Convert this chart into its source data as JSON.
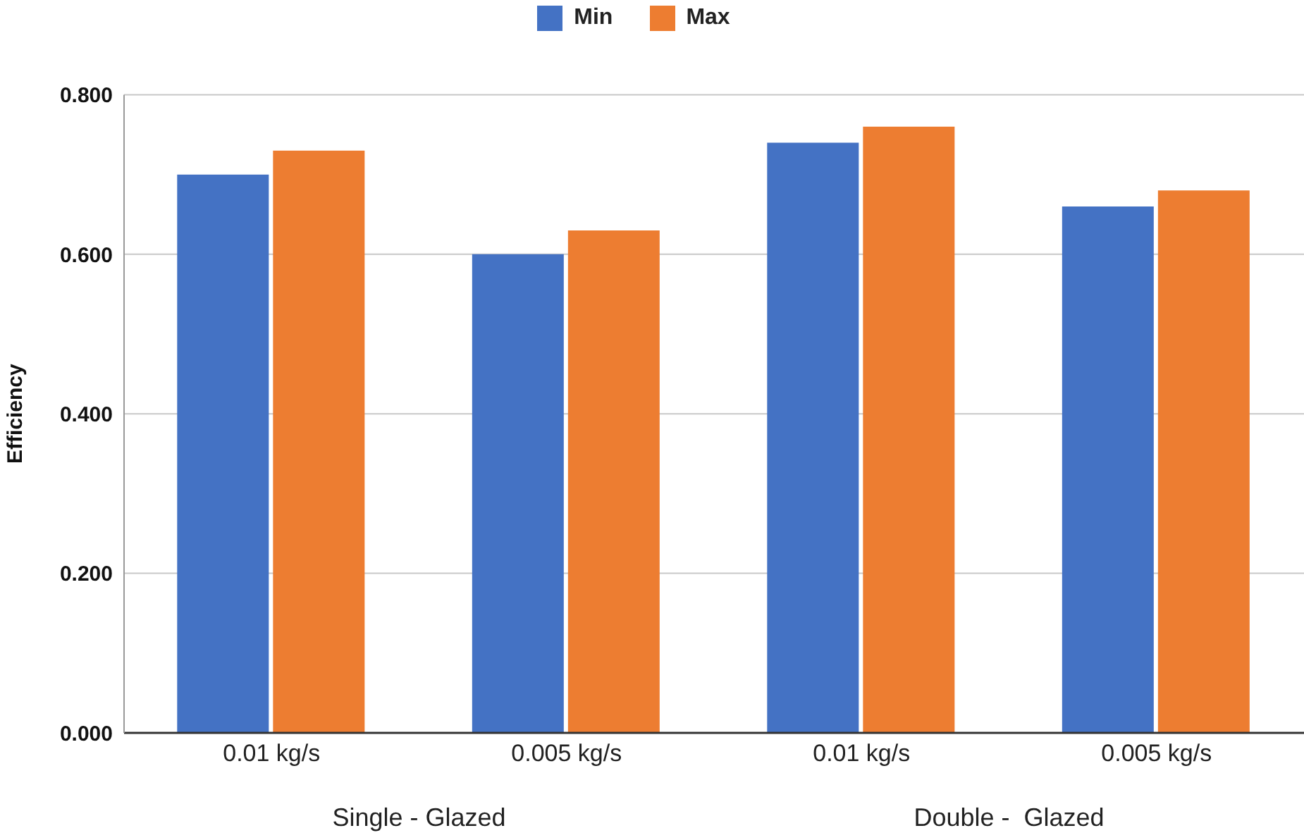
{
  "chart_data": {
    "type": "bar",
    "ylabel": "Efficiency",
    "categories": [
      "0.01 kg/s",
      "0.005 kg/s",
      "0.01 kg/s",
      "0.005 kg/s"
    ],
    "series": [
      {
        "name": "Min",
        "color": "#4472c4",
        "values": [
          0.7,
          0.6,
          0.74,
          0.66
        ]
      },
      {
        "name": "Max",
        "color": "#ed7d31",
        "values": [
          0.73,
          0.63,
          0.76,
          0.68
        ]
      }
    ],
    "ylim": [
      0,
      0.8
    ],
    "yticks": [
      {
        "value": 0,
        "label": "0.000"
      },
      {
        "value": 0.2,
        "label": "0.200"
      },
      {
        "value": 0.4,
        "label": "0.400"
      },
      {
        "value": 0.6,
        "label": "0.600"
      },
      {
        "value": 0.8,
        "label": "0.800"
      }
    ],
    "grid": "y",
    "legend": "top",
    "annotations": [
      "Single - Glazed",
      "Double -  Glazed"
    ]
  }
}
